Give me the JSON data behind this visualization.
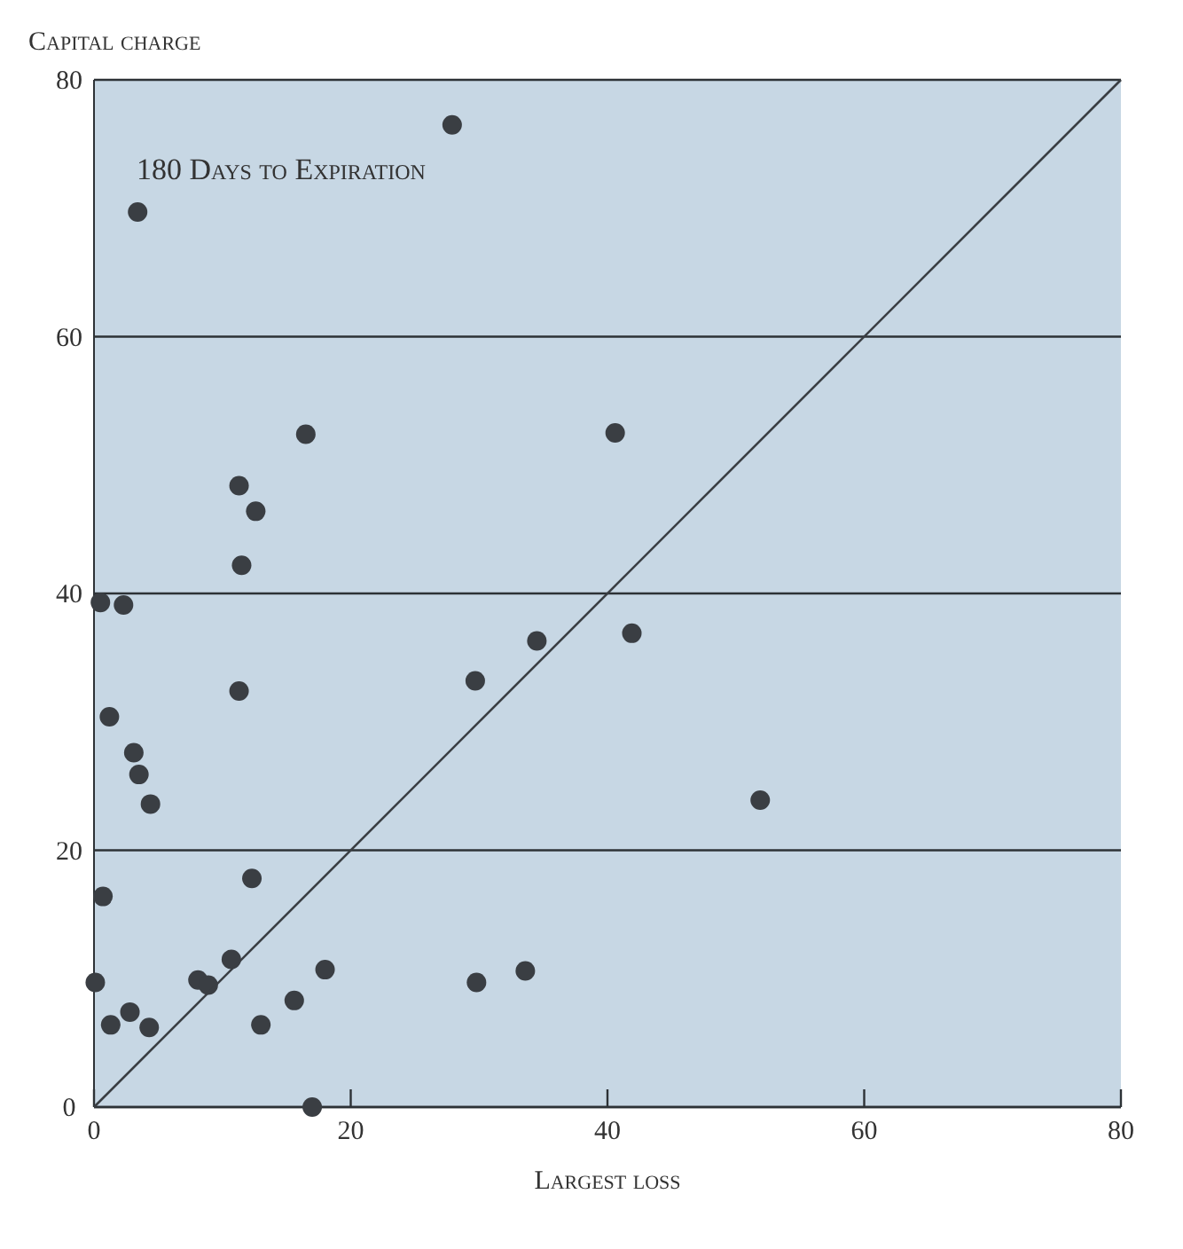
{
  "chart_data": {
    "type": "scatter",
    "xlabel": "Largest loss",
    "ylabel": "Capital charge",
    "annotations": [
      "180 Days to Expiration"
    ],
    "xlim": [
      0,
      80
    ],
    "ylim": [
      0,
      80
    ],
    "xticks": [
      0,
      20,
      40,
      60,
      80
    ],
    "yticks": [
      0,
      20,
      40,
      60,
      80
    ],
    "grid": "y",
    "marker": "circle",
    "series": [
      {
        "color": "#3a3e43",
        "x": [
          27.9,
          3.4,
          16.5,
          11.3,
          12.6,
          11.5,
          0.5,
          2.3,
          11.3,
          1.2,
          3.1,
          3.5,
          4.4,
          12.3,
          0.7,
          0.1,
          10.7,
          8.1,
          8.9,
          18.0,
          15.6,
          2.8,
          1.3,
          4.3,
          13.0,
          17.0,
          29.7,
          34.5,
          29.8,
          33.6,
          40.6,
          41.9,
          51.9
        ],
        "values": [
          76.5,
          69.7,
          52.4,
          48.4,
          46.4,
          42.2,
          39.3,
          39.1,
          32.4,
          30.4,
          27.6,
          25.9,
          23.6,
          17.8,
          16.4,
          9.7,
          11.5,
          9.9,
          9.5,
          10.7,
          8.3,
          7.4,
          6.4,
          6.2,
          6.4,
          0,
          33.2,
          36.3,
          9.7,
          10.6,
          52.5,
          36.9,
          23.9
        ]
      },
      {
        "type": "line",
        "color": "#3a3e43",
        "x": [
          0,
          80
        ],
        "values": [
          0,
          80
        ],
        "marker": "none"
      }
    ]
  }
}
